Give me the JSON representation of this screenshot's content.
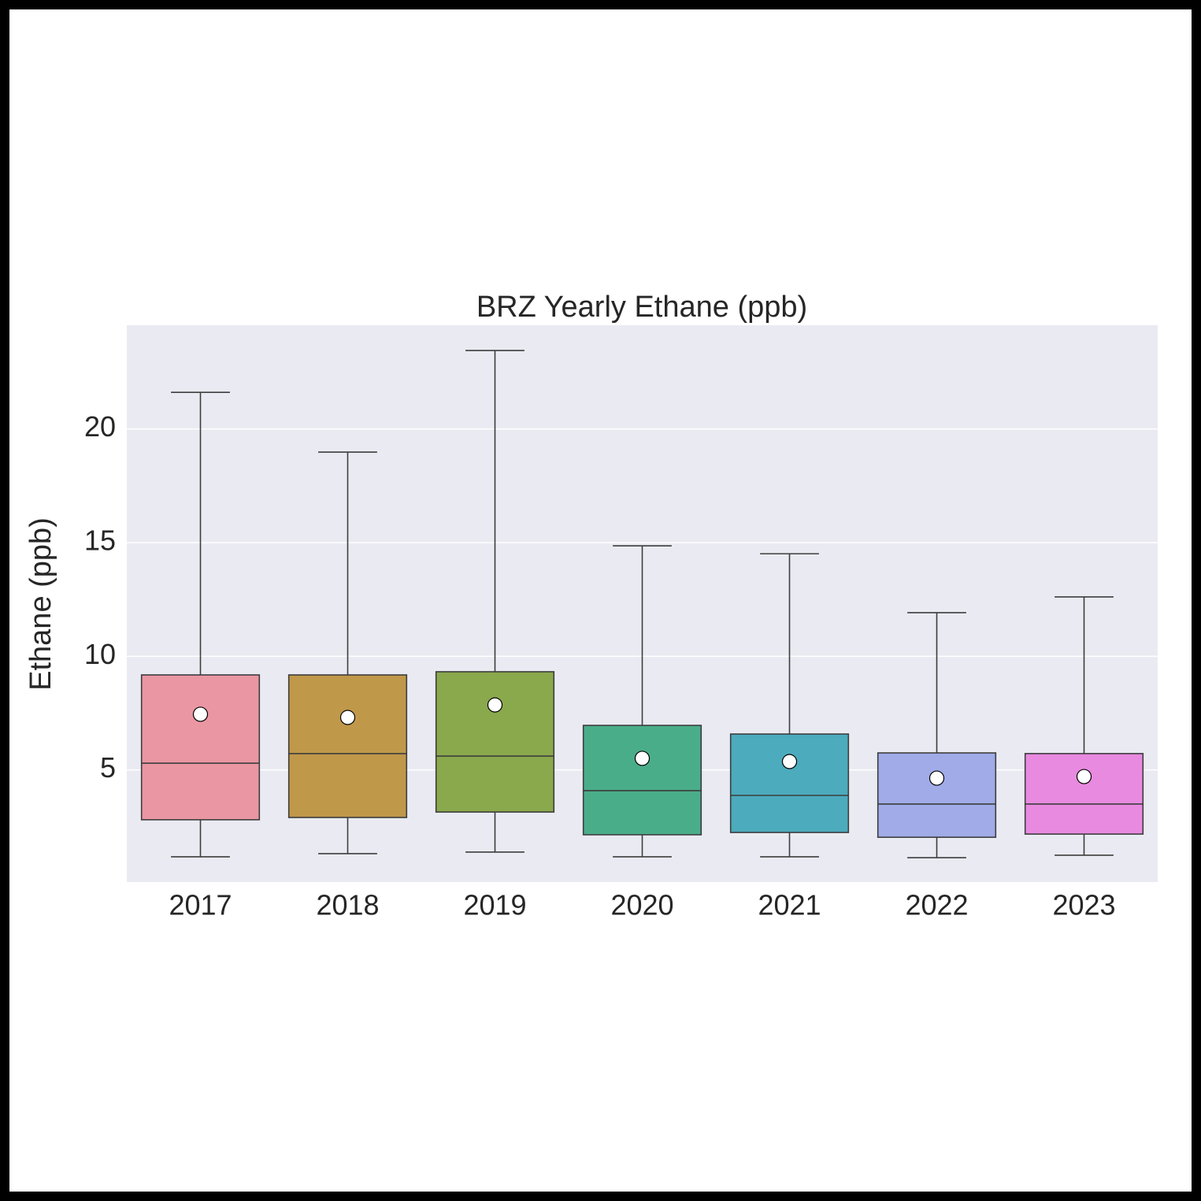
{
  "chart_data": {
    "type": "box",
    "title": "BRZ Yearly Ethane (ppb)",
    "y_label": "Ethane (ppb)",
    "categories": [
      "2017",
      "2018",
      "2019",
      "2020",
      "2021",
      "2022",
      "2023"
    ],
    "colors": [
      "#ea96a3",
      "#c0984a",
      "#8aa84c",
      "#4aad8a",
      "#4cabbd",
      "#a0abe8",
      "#e88ae0"
    ],
    "whisker_low": [
      1.18,
      1.32,
      1.39,
      1.18,
      1.18,
      1.14,
      1.25
    ],
    "q1": [
      2.81,
      2.91,
      3.15,
      2.15,
      2.25,
      2.04,
      2.18
    ],
    "median": [
      5.3,
      5.72,
      5.61,
      4.09,
      3.88,
      3.5,
      3.5
    ],
    "q3": [
      9.18,
      9.18,
      9.32,
      6.96,
      6.58,
      5.75,
      5.72
    ],
    "whisker_high": [
      21.61,
      18.98,
      23.45,
      14.86,
      14.51,
      11.92,
      12.61
    ],
    "mean": [
      7.45,
      7.31,
      7.86,
      5.51,
      5.37,
      4.64,
      4.71
    ],
    "ylim": [
      0.07,
      24.56
    ],
    "yticks": [
      5,
      10,
      15,
      20
    ],
    "grid": true
  }
}
